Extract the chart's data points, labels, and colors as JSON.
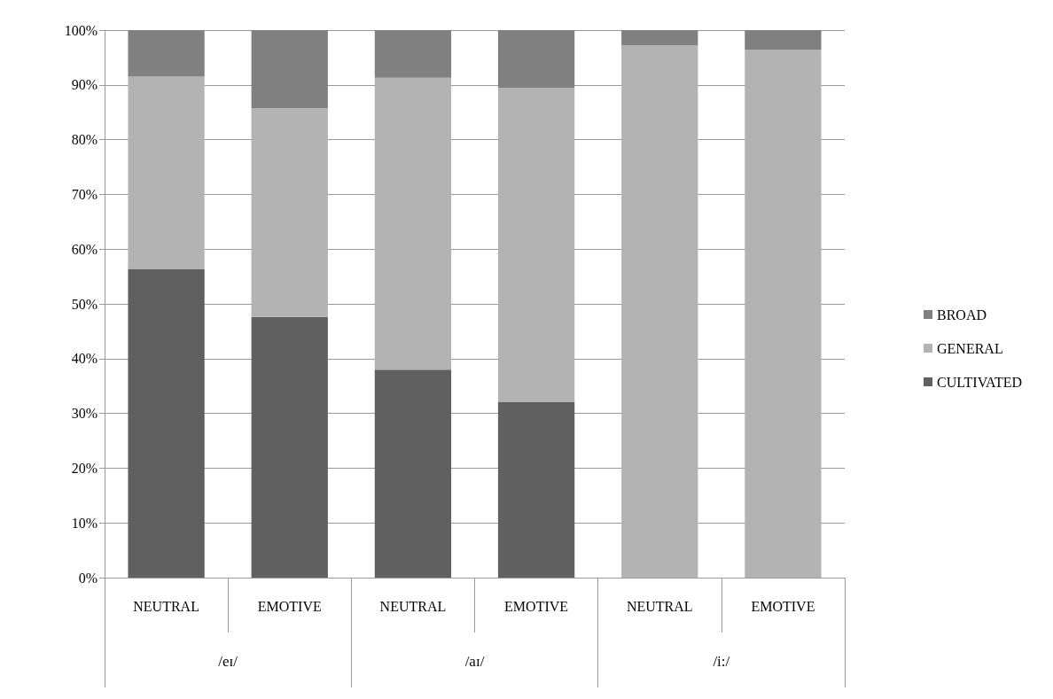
{
  "chart_data": {
    "type": "bar",
    "stacked": true,
    "categories": [
      "NEUTRAL",
      "EMOTIVE",
      "NEUTRAL",
      "EMOTIVE",
      "NEUTRAL",
      "EMOTIVE"
    ],
    "annotations": [
      "/eɪ/",
      "/aɪ/",
      "/i:/"
    ],
    "series": [
      {
        "name": "CULTIVATED",
        "color": "#606060",
        "values": [
          56.4,
          47.6,
          38.0,
          32.1,
          0,
          0
        ]
      },
      {
        "name": "GENERAL",
        "color": "#b3b3b3",
        "values": [
          35.1,
          38.1,
          53.3,
          57.4,
          97.2,
          96.4
        ]
      },
      {
        "name": "BROAD",
        "color": "#808080",
        "values": [
          8.5,
          14.3,
          8.7,
          10.5,
          2.8,
          3.6
        ]
      }
    ],
    "ylim": [
      0,
      100
    ],
    "yticks": [
      {
        "value": 0,
        "label": "0%"
      },
      {
        "value": 10,
        "label": "10%"
      },
      {
        "value": 20,
        "label": "20%"
      },
      {
        "value": 30,
        "label": "30%"
      },
      {
        "value": 40,
        "label": "40%"
      },
      {
        "value": 50,
        "label": "50%"
      },
      {
        "value": 60,
        "label": "60%"
      },
      {
        "value": 70,
        "label": "70%"
      },
      {
        "value": 80,
        "label": "80%"
      },
      {
        "value": 90,
        "label": "90%"
      },
      {
        "value": 100,
        "label": "100%"
      }
    ],
    "grid": "y",
    "legend": "right"
  }
}
